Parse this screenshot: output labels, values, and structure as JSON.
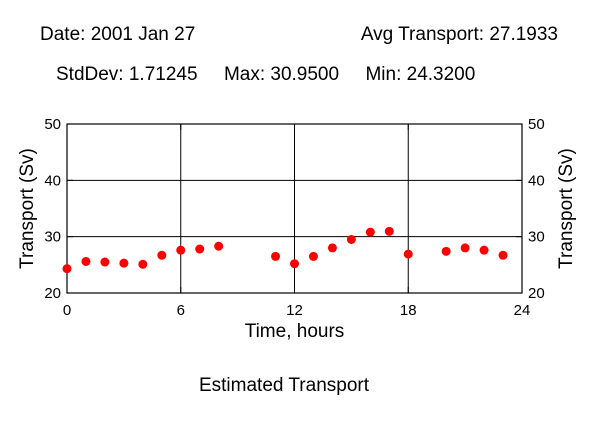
{
  "header": {
    "date": "Date: 2001 Jan 27",
    "avg": "Avg Transport: 27.1933",
    "stats": "StdDev: 1.71245     Max: 30.9500     Min: 24.3200"
  },
  "caption": "Estimated Transport",
  "colors": {
    "marker": "#ff0000",
    "axis": "#000000"
  },
  "chart_data": {
    "type": "scatter",
    "xlabel": "Time, hours",
    "ylabel": "Transport (Sv)",
    "xlim": [
      0,
      24
    ],
    "ylim": [
      20,
      50
    ],
    "xticks": [
      0,
      6,
      12,
      18,
      24
    ],
    "yticks": [
      20,
      30,
      40,
      50
    ],
    "grid": true,
    "points": [
      {
        "x": 0,
        "y": 24.32
      },
      {
        "x": 1,
        "y": 25.6
      },
      {
        "x": 2,
        "y": 25.5
      },
      {
        "x": 3,
        "y": 25.3
      },
      {
        "x": 4,
        "y": 25.1
      },
      {
        "x": 5,
        "y": 26.7
      },
      {
        "x": 6,
        "y": 27.6
      },
      {
        "x": 7,
        "y": 27.8
      },
      {
        "x": 8,
        "y": 28.3
      },
      {
        "x": 11,
        "y": 26.5
      },
      {
        "x": 12,
        "y": 25.2
      },
      {
        "x": 13,
        "y": 26.5
      },
      {
        "x": 14,
        "y": 28.0
      },
      {
        "x": 15,
        "y": 29.5
      },
      {
        "x": 16,
        "y": 30.8
      },
      {
        "x": 17,
        "y": 30.95
      },
      {
        "x": 18,
        "y": 26.9
      },
      {
        "x": 20,
        "y": 27.4
      },
      {
        "x": 21,
        "y": 28.0
      },
      {
        "x": 22,
        "y": 27.6
      },
      {
        "x": 23,
        "y": 26.7
      }
    ]
  }
}
